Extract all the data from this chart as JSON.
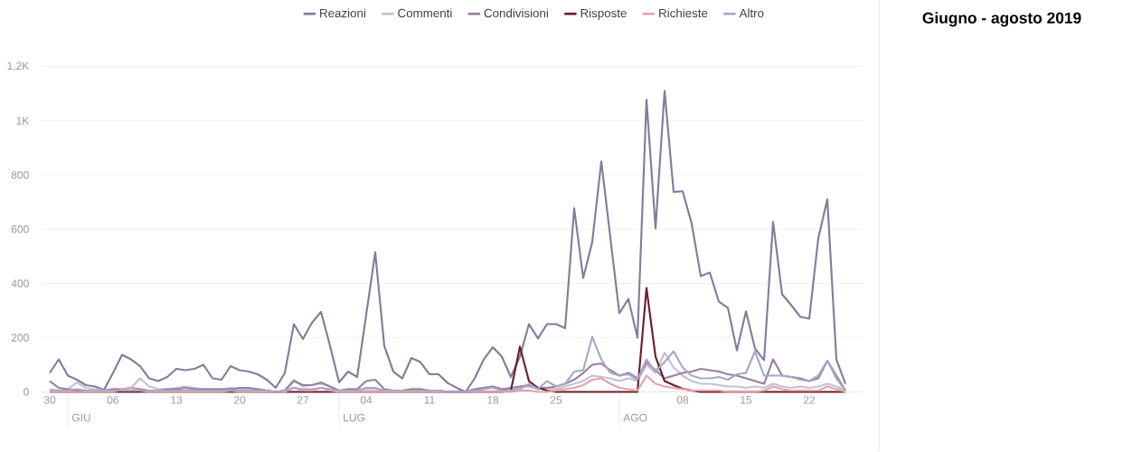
{
  "chart_data": {
    "type": "line",
    "title": "Giugno - agosto 2019",
    "x": [
      "2019-05-30",
      "2019-05-31",
      "2019-06-01",
      "2019-06-02",
      "2019-06-03",
      "2019-06-04",
      "2019-06-05",
      "2019-06-06",
      "2019-06-07",
      "2019-06-08",
      "2019-06-09",
      "2019-06-10",
      "2019-06-11",
      "2019-06-12",
      "2019-06-13",
      "2019-06-14",
      "2019-06-15",
      "2019-06-16",
      "2019-06-17",
      "2019-06-18",
      "2019-06-19",
      "2019-06-20",
      "2019-06-21",
      "2019-06-22",
      "2019-06-23",
      "2019-06-24",
      "2019-06-25",
      "2019-06-26",
      "2019-06-27",
      "2019-06-28",
      "2019-06-29",
      "2019-06-30",
      "2019-07-01",
      "2019-07-02",
      "2019-07-03",
      "2019-07-04",
      "2019-07-05",
      "2019-07-06",
      "2019-07-07",
      "2019-07-08",
      "2019-07-09",
      "2019-07-10",
      "2019-07-11",
      "2019-07-12",
      "2019-07-13",
      "2019-07-14",
      "2019-07-15",
      "2019-07-16",
      "2019-07-17",
      "2019-07-18",
      "2019-07-19",
      "2019-07-20",
      "2019-07-21",
      "2019-07-22",
      "2019-07-23",
      "2019-07-24",
      "2019-07-25",
      "2019-07-26",
      "2019-07-27",
      "2019-07-28",
      "2019-07-29",
      "2019-07-30",
      "2019-07-31",
      "2019-08-01",
      "2019-08-02",
      "2019-08-03",
      "2019-08-04",
      "2019-08-05",
      "2019-08-06",
      "2019-08-07",
      "2019-08-08",
      "2019-08-09",
      "2019-08-10",
      "2019-08-11",
      "2019-08-12",
      "2019-08-13",
      "2019-08-14",
      "2019-08-15",
      "2019-08-16",
      "2019-08-17",
      "2019-08-18",
      "2019-08-19",
      "2019-08-20",
      "2019-08-21",
      "2019-08-22",
      "2019-08-23",
      "2019-08-24",
      "2019-08-25",
      "2019-08-26"
    ],
    "series": [
      {
        "name": "Reazioni",
        "color": "#857b9c",
        "values": [
          70,
          120,
          60,
          45,
          25,
          20,
          8,
          70,
          137,
          120,
          95,
          50,
          40,
          55,
          85,
          80,
          85,
          100,
          50,
          45,
          95,
          80,
          75,
          65,
          45,
          15,
          70,
          250,
          195,
          255,
          295,
          170,
          35,
          75,
          55,
          285,
          515,
          170,
          75,
          50,
          125,
          110,
          65,
          65,
          33,
          15,
          0,
          50,
          120,
          165,
          130,
          55,
          130,
          250,
          197,
          250,
          250,
          235,
          677,
          420,
          553,
          850,
          570,
          290,
          343,
          200,
          1077,
          603,
          1110,
          737,
          740,
          620,
          427,
          440,
          333,
          310,
          153,
          297,
          160,
          117,
          627,
          360,
          320,
          277,
          270,
          567,
          710,
          120,
          30
        ]
      },
      {
        "name": "Commenti",
        "color": "#c3c0d6",
        "values": [
          10,
          5,
          10,
          35,
          15,
          10,
          5,
          10,
          10,
          15,
          50,
          20,
          10,
          10,
          15,
          20,
          15,
          10,
          10,
          10,
          15,
          10,
          10,
          10,
          5,
          0,
          5,
          45,
          20,
          25,
          30,
          20,
          5,
          10,
          10,
          10,
          10,
          5,
          5,
          5,
          10,
          10,
          5,
          5,
          0,
          0,
          0,
          10,
          15,
          20,
          10,
          10,
          15,
          20,
          10,
          15,
          10,
          20,
          30,
          40,
          60,
          55,
          50,
          40,
          50,
          40,
          100,
          70,
          145,
          90,
          60,
          40,
          30,
          30,
          25,
          20,
          20,
          15,
          20,
          15,
          30,
          20,
          15,
          20,
          15,
          20,
          30,
          20,
          5
        ]
      },
      {
        "name": "Condivisioni",
        "color": "#9b7f9e",
        "values": [
          40,
          15,
          10,
          5,
          5,
          5,
          5,
          10,
          10,
          15,
          10,
          5,
          5,
          10,
          10,
          15,
          10,
          10,
          10,
          10,
          10,
          15,
          15,
          10,
          5,
          0,
          5,
          40,
          25,
          25,
          35,
          20,
          5,
          10,
          10,
          40,
          45,
          10,
          5,
          5,
          10,
          10,
          5,
          5,
          0,
          0,
          0,
          10,
          15,
          20,
          10,
          15,
          20,
          25,
          15,
          15,
          20,
          30,
          45,
          70,
          100,
          105,
          80,
          60,
          70,
          50,
          110,
          80,
          50,
          60,
          70,
          75,
          85,
          80,
          75,
          65,
          60,
          50,
          40,
          30,
          120,
          60,
          55,
          50,
          40,
          50,
          115,
          60,
          5
        ]
      },
      {
        "name": "Risposte",
        "color": "#6b1e2a",
        "values": [
          0,
          0,
          0,
          0,
          0,
          0,
          0,
          0,
          0,
          0,
          0,
          0,
          0,
          0,
          0,
          0,
          0,
          0,
          0,
          0,
          0,
          0,
          0,
          0,
          0,
          0,
          0,
          0,
          0,
          0,
          0,
          0,
          0,
          0,
          0,
          0,
          0,
          0,
          0,
          0,
          0,
          0,
          0,
          0,
          0,
          0,
          0,
          0,
          0,
          0,
          0,
          5,
          167,
          40,
          15,
          5,
          0,
          0,
          0,
          0,
          0,
          0,
          0,
          0,
          0,
          0,
          383,
          130,
          40,
          25,
          12,
          5,
          0,
          0,
          0,
          0,
          0,
          0,
          0,
          0,
          0,
          0,
          0,
          0,
          0,
          0,
          0,
          0,
          0
        ]
      },
      {
        "name": "Richieste",
        "color": "#e3a3ab",
        "values": [
          0,
          0,
          0,
          0,
          0,
          0,
          0,
          0,
          10,
          15,
          5,
          0,
          0,
          0,
          0,
          0,
          0,
          0,
          0,
          0,
          5,
          0,
          0,
          0,
          0,
          0,
          0,
          15,
          5,
          5,
          15,
          5,
          0,
          0,
          0,
          0,
          0,
          0,
          0,
          0,
          0,
          0,
          0,
          0,
          0,
          0,
          0,
          0,
          0,
          0,
          0,
          0,
          5,
          5,
          0,
          0,
          5,
          10,
          15,
          25,
          45,
          50,
          30,
          15,
          10,
          5,
          60,
          30,
          20,
          15,
          10,
          5,
          5,
          5,
          5,
          0,
          0,
          0,
          0,
          5,
          20,
          10,
          5,
          5,
          5,
          5,
          20,
          10,
          0
        ]
      },
      {
        "name": "Altro",
        "color": "#a6a9c4",
        "values": [
          5,
          5,
          5,
          10,
          5,
          5,
          5,
          5,
          5,
          5,
          5,
          5,
          5,
          5,
          5,
          5,
          5,
          5,
          5,
          5,
          5,
          5,
          5,
          5,
          5,
          0,
          5,
          15,
          10,
          10,
          15,
          10,
          5,
          5,
          5,
          15,
          15,
          5,
          5,
          5,
          5,
          5,
          5,
          5,
          0,
          0,
          0,
          5,
          10,
          15,
          5,
          5,
          10,
          30,
          10,
          40,
          20,
          30,
          75,
          80,
          203,
          120,
          70,
          60,
          65,
          45,
          120,
          75,
          110,
          150,
          90,
          60,
          50,
          50,
          55,
          45,
          65,
          70,
          150,
          60,
          60,
          60,
          55,
          45,
          40,
          60,
          115,
          50,
          5
        ]
      }
    ],
    "xlim": [
      "2019-05-29",
      "2019-08-28"
    ],
    "xticks": [
      {
        "value": "2019-05-30",
        "label": "30"
      },
      {
        "value": "2019-06-06",
        "label": "06"
      },
      {
        "value": "2019-06-13",
        "label": "13"
      },
      {
        "value": "2019-06-20",
        "label": "20"
      },
      {
        "value": "2019-06-27",
        "label": "27"
      },
      {
        "value": "2019-07-04",
        "label": "04"
      },
      {
        "value": "2019-07-11",
        "label": "11"
      },
      {
        "value": "2019-07-18",
        "label": "18"
      },
      {
        "value": "2019-07-25",
        "label": "25"
      },
      {
        "value": "2019-08-08",
        "label": "08"
      },
      {
        "value": "2019-08-15",
        "label": "15"
      },
      {
        "value": "2019-08-22",
        "label": "22"
      }
    ],
    "ref_lines": [
      {
        "axis": "x",
        "value": "2019-06-01",
        "label": "GIU"
      },
      {
        "axis": "x",
        "value": "2019-07-01",
        "label": "LUG"
      },
      {
        "axis": "x",
        "value": "2019-08-01",
        "label": "AGO"
      }
    ],
    "ylim": [
      0,
      1200
    ],
    "yticks": [
      0,
      200,
      400,
      600,
      800,
      {
        "value": 1000,
        "label": "1K"
      },
      {
        "value": 1200,
        "label": "1,2K"
      }
    ],
    "grid": "y",
    "legend": "top"
  }
}
